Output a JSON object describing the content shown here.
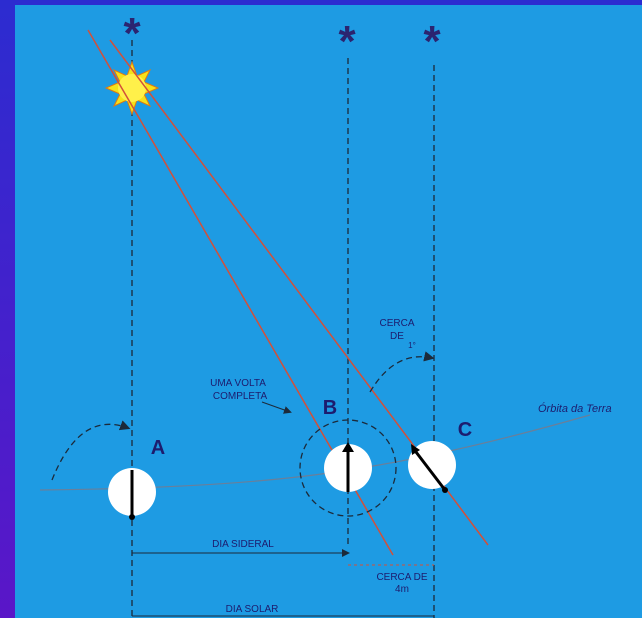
{
  "stars": [
    "*",
    "*",
    "*"
  ],
  "earths": {
    "a": "A",
    "b": "B",
    "c": "C"
  },
  "full_turn": [
    "UMA VOLTA",
    "COMPLETA"
  ],
  "about_one_degree": [
    "CERCA",
    "DE",
    "1°"
  ],
  "orbit": "Órbita da Terra",
  "sidereal_day": "DIA SIDERAL",
  "about_four_minutes": [
    "CERCA DE",
    "4m"
  ],
  "solar_day": "DIA SOLAR"
}
